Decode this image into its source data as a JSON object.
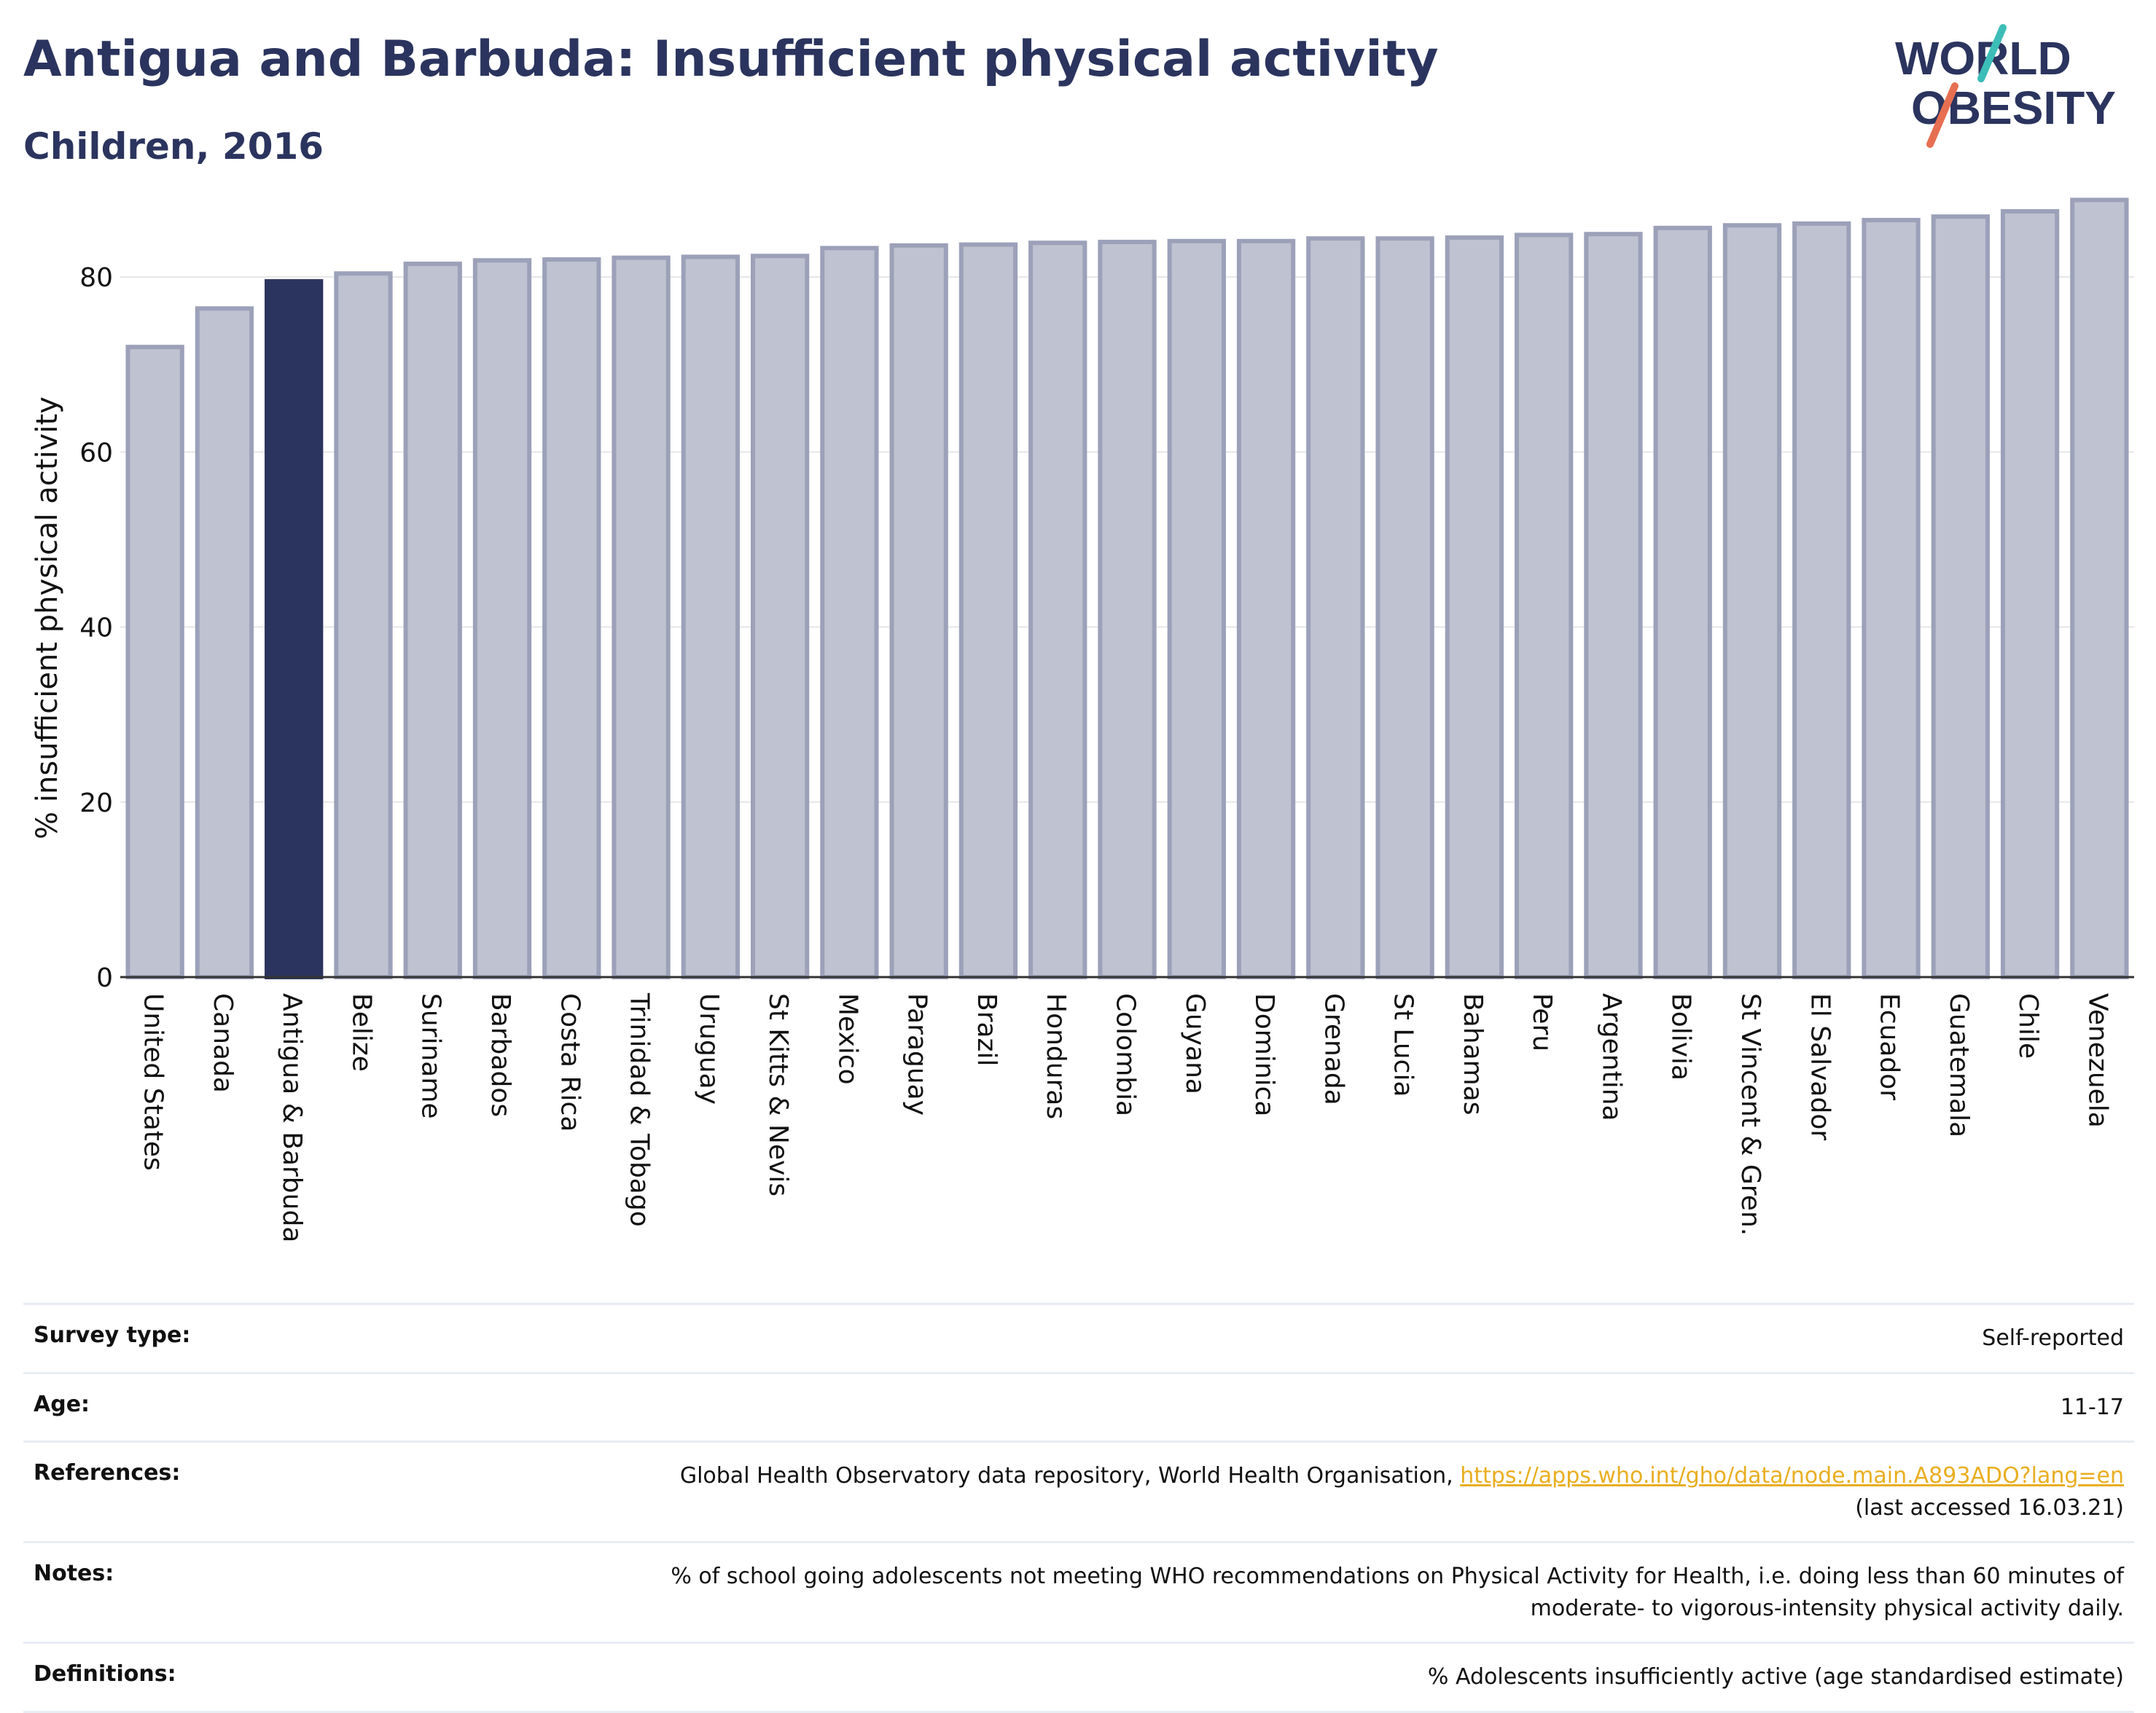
{
  "header": {
    "title": "Antigua and Barbuda: Insufficient physical activity",
    "subtitle": "Children, 2016"
  },
  "logo": {
    "line1": "WORLD",
    "line2": "OBESITY",
    "text_color": "#2b345e",
    "stripe_colors": [
      "#3dbdb8",
      "#e76f51"
    ]
  },
  "chart_data": {
    "type": "bar",
    "ylabel": "% insufficient physical activity",
    "ylim": [
      0,
      90
    ],
    "yticks": [
      0,
      20,
      40,
      60,
      80
    ],
    "grid": true,
    "categories": [
      "United States",
      "Canada",
      "Antigua & Barbuda",
      "Belize",
      "Suriname",
      "Barbados",
      "Costa Rica",
      "Trinidad & Tobago",
      "Uruguay",
      "St Kitts & Nevis",
      "Mexico",
      "Paraguay",
      "Brazil",
      "Honduras",
      "Colombia",
      "Guyana",
      "Dominica",
      "Grenada",
      "St Lucia",
      "Bahamas",
      "Peru",
      "Argentina",
      "Bolivia",
      "St Vincent & Gren.",
      "El Salvador",
      "Ecuador",
      "Guatemala",
      "Chile",
      "Venezuela"
    ],
    "values": [
      72.0,
      76.4,
      79.5,
      80.4,
      81.5,
      81.9,
      82.0,
      82.2,
      82.3,
      82.4,
      83.3,
      83.6,
      83.7,
      83.9,
      84.0,
      84.1,
      84.1,
      84.4,
      84.4,
      84.5,
      84.8,
      84.9,
      85.6,
      85.9,
      86.1,
      86.5,
      86.9,
      87.5,
      88.8
    ],
    "highlight": "Antigua & Barbuda",
    "colors": {
      "highlight": "#2b345e",
      "bar": "#bfc2d0",
      "bar_border": "#9ca1b9",
      "grid": "#e6e6ea",
      "axis": "#333333"
    }
  },
  "info": [
    {
      "label": "Survey type:",
      "value": "Self-reported"
    },
    {
      "label": "Age:",
      "value": "11-17"
    },
    {
      "label": "References:",
      "value": "Global Health Observatory data repository, World Health Organisation,",
      "link": "https://apps.who.int/gho/data/node.main.A893ADO?lang=en",
      "value2": "(last accessed 16.03.21)"
    },
    {
      "label": "Notes:",
      "value": "% of school going adolescents not meeting WHO recommendations on Physical Activity for Health, i.e. doing less than 60 minutes of",
      "value2": "moderate- to vigorous-intensity physical activity daily."
    },
    {
      "label": "Definitions:",
      "value": "% Adolescents insufficiently active (age standardised estimate)"
    }
  ]
}
